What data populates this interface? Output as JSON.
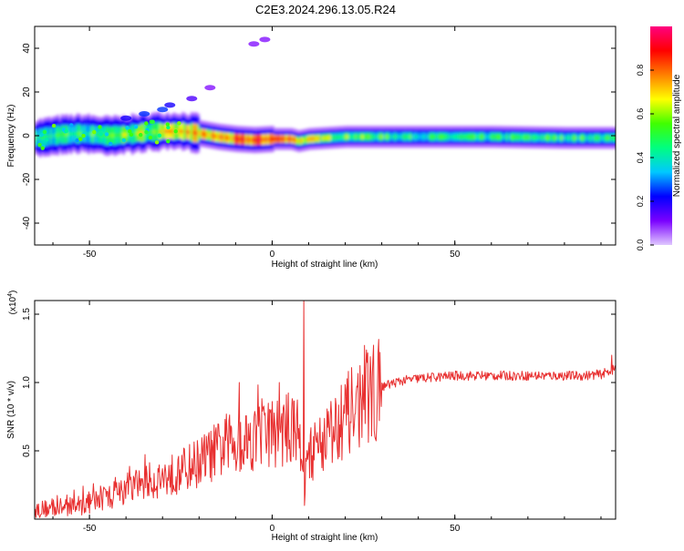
{
  "figure_title": "C2E3.2024.296.13.05.R24",
  "chart_data": [
    {
      "type": "heatmap",
      "title": "",
      "xlabel": "Height of straight line (km)",
      "ylabel": "Frequency (Hz)",
      "xlim": [
        -65,
        94
      ],
      "ylim": [
        -50,
        50
      ],
      "xticks": [
        -50,
        0,
        50
      ],
      "yticks": [
        -40,
        -20,
        0,
        20,
        40
      ],
      "grid": false,
      "colorbar": {
        "label": "Normalized spectral amplitude",
        "range": [
          0,
          1
        ],
        "ticks": [
          "0.0",
          "0.2",
          "0.4",
          "0.6",
          "0.8"
        ],
        "colormap": [
          "#e0c8ff",
          "#7a00ff",
          "#0000ff",
          "#00c8ff",
          "#00ff80",
          "#40ff00",
          "#ffff00",
          "#ff8000",
          "#ff0000",
          "#ff0080"
        ]
      },
      "ridge": [
        {
          "x": -64,
          "y": -1,
          "amp": 0.45
        },
        {
          "x": -58,
          "y": 0.5,
          "amp": 0.5
        },
        {
          "x": -52,
          "y": 1,
          "amp": 0.5
        },
        {
          "x": -45,
          "y": 0,
          "amp": 0.55
        },
        {
          "x": -40,
          "y": 0.5,
          "amp": 0.6
        },
        {
          "x": -35,
          "y": 1.5,
          "amp": 0.6
        },
        {
          "x": -30,
          "y": 2,
          "amp": 0.65
        },
        {
          "x": -25,
          "y": 2,
          "amp": 0.7
        },
        {
          "x": -20,
          "y": 1,
          "amp": 0.75
        },
        {
          "x": -15,
          "y": -0.5,
          "amp": 0.75
        },
        {
          "x": -10,
          "y": -1.5,
          "amp": 0.8
        },
        {
          "x": -5,
          "y": -2,
          "amp": 0.85
        },
        {
          "x": 0,
          "y": -1.5,
          "amp": 0.85
        },
        {
          "x": 5,
          "y": -1.5,
          "amp": 0.85
        },
        {
          "x": 7,
          "y": -2.5,
          "amp": 0.7
        },
        {
          "x": 10,
          "y": -1.5,
          "amp": 0.65
        },
        {
          "x": 20,
          "y": -0.5,
          "amp": 0.55
        },
        {
          "x": 40,
          "y": -0.5,
          "amp": 0.45
        },
        {
          "x": 60,
          "y": -0.5,
          "amp": 0.45
        },
        {
          "x": 80,
          "y": -1,
          "amp": 0.5
        },
        {
          "x": 94,
          "y": -1,
          "amp": 0.45
        }
      ],
      "scatter_blobs": [
        {
          "x": -30,
          "y": 12,
          "amp": 0.25
        },
        {
          "x": -35,
          "y": 10,
          "amp": 0.25
        },
        {
          "x": -40,
          "y": 8,
          "amp": 0.2
        },
        {
          "x": -28,
          "y": 14,
          "amp": 0.2
        },
        {
          "x": -22,
          "y": 17,
          "amp": 0.15
        },
        {
          "x": -17,
          "y": 22,
          "amp": 0.1
        },
        {
          "x": -5,
          "y": 42,
          "amp": 0.1
        },
        {
          "x": -2,
          "y": 44,
          "amp": 0.1
        }
      ]
    },
    {
      "type": "line",
      "title": "",
      "xlabel": "Height of straight line (km)",
      "ylabel": "SNR (10 * v/v)",
      "y_multiplier": "(x10",
      "y_multiplier_exp": "4",
      "y_multiplier_close": ")",
      "xlim": [
        -65,
        94
      ],
      "ylim": [
        0,
        1.6
      ],
      "xticks": [
        -50,
        0,
        50
      ],
      "yticks": [
        0.5,
        1.0,
        1.5
      ],
      "ytick_labels": [
        "0.5",
        "1.0",
        "1.5"
      ],
      "grid": false,
      "series": [
        {
          "color": "#e83030",
          "envelope_x": [
            -65,
            -60,
            -55,
            -50,
            -45,
            -40,
            -35,
            -30,
            -25,
            -20,
            -15,
            -10,
            -5,
            0,
            5,
            8,
            9,
            10,
            15,
            20,
            25,
            30,
            35,
            40,
            45,
            50,
            60,
            70,
            80,
            85,
            90,
            94
          ],
          "envelope_y": [
            0.07,
            0.08,
            0.09,
            0.12,
            0.16,
            0.22,
            0.27,
            0.3,
            0.35,
            0.42,
            0.5,
            0.56,
            0.6,
            0.63,
            0.66,
            0.6,
            0.3,
            0.45,
            0.62,
            0.75,
            0.88,
            0.97,
            1.01,
            1.03,
            1.04,
            1.05,
            1.05,
            1.05,
            1.05,
            1.05,
            1.06,
            1.1
          ],
          "spikes": [
            {
              "x": 8.7,
              "y": 1.6
            },
            {
              "x": 8.9,
              "y": 0.1
            },
            {
              "x": -9,
              "y": 1.0
            },
            {
              "x": 2,
              "y": 1.0
            },
            {
              "x": 19,
              "y": 0.98
            },
            {
              "x": 93,
              "y": 1.2
            }
          ]
        }
      ]
    }
  ]
}
